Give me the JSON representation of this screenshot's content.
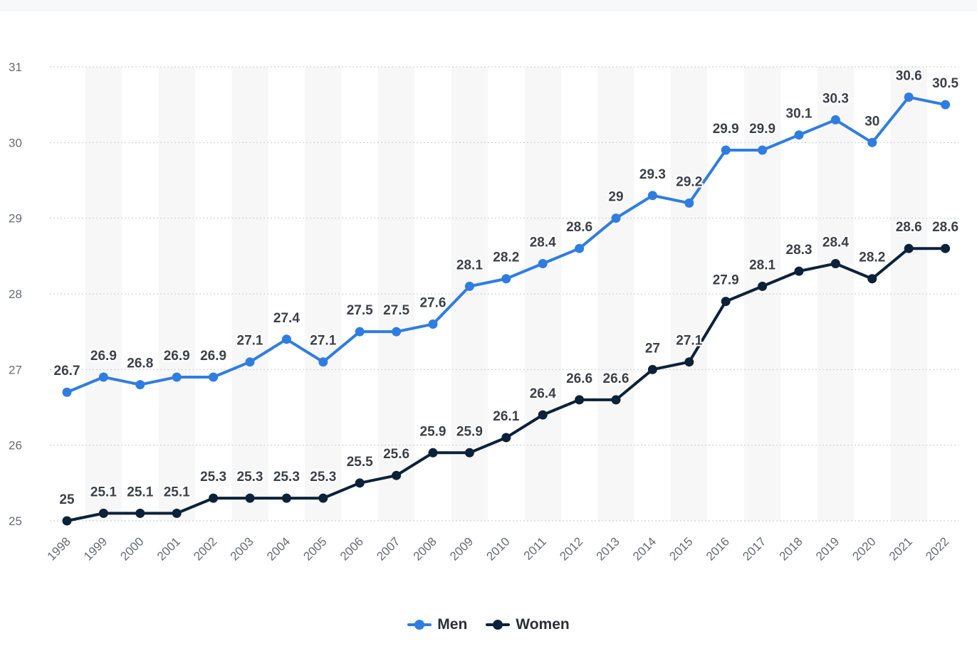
{
  "chart_data": {
    "type": "line",
    "categories": [
      "1998",
      "1999",
      "2000",
      "2001",
      "2002",
      "2003",
      "2004",
      "2005",
      "2006",
      "2007",
      "2008",
      "2009",
      "2010",
      "2011",
      "2012",
      "2013",
      "2014",
      "2015",
      "2016",
      "2017",
      "2018",
      "2019",
      "2020",
      "2021",
      "2022"
    ],
    "series": [
      {
        "name": "Men",
        "color": "#2f7de1",
        "values": [
          26.7,
          26.9,
          26.8,
          26.9,
          26.9,
          27.1,
          27.4,
          27.1,
          27.5,
          27.5,
          27.6,
          28.1,
          28.2,
          28.4,
          28.6,
          29,
          29.3,
          29.2,
          29.9,
          29.9,
          30.1,
          30.3,
          30,
          30.6,
          30.5
        ]
      },
      {
        "name": "Women",
        "color": "#0b2239",
        "values": [
          25,
          25.1,
          25.1,
          25.1,
          25.3,
          25.3,
          25.3,
          25.3,
          25.5,
          25.6,
          25.9,
          25.9,
          26.1,
          26.4,
          26.6,
          26.6,
          27,
          27.1,
          27.9,
          28.1,
          28.3,
          28.4,
          28.2,
          28.6,
          28.6
        ]
      }
    ],
    "y_ticks": [
      "25",
      "26",
      "27",
      "28",
      "29",
      "30",
      "31"
    ],
    "ylim": [
      25,
      31
    ],
    "grid": true,
    "legend_position": "bottom-center"
  }
}
